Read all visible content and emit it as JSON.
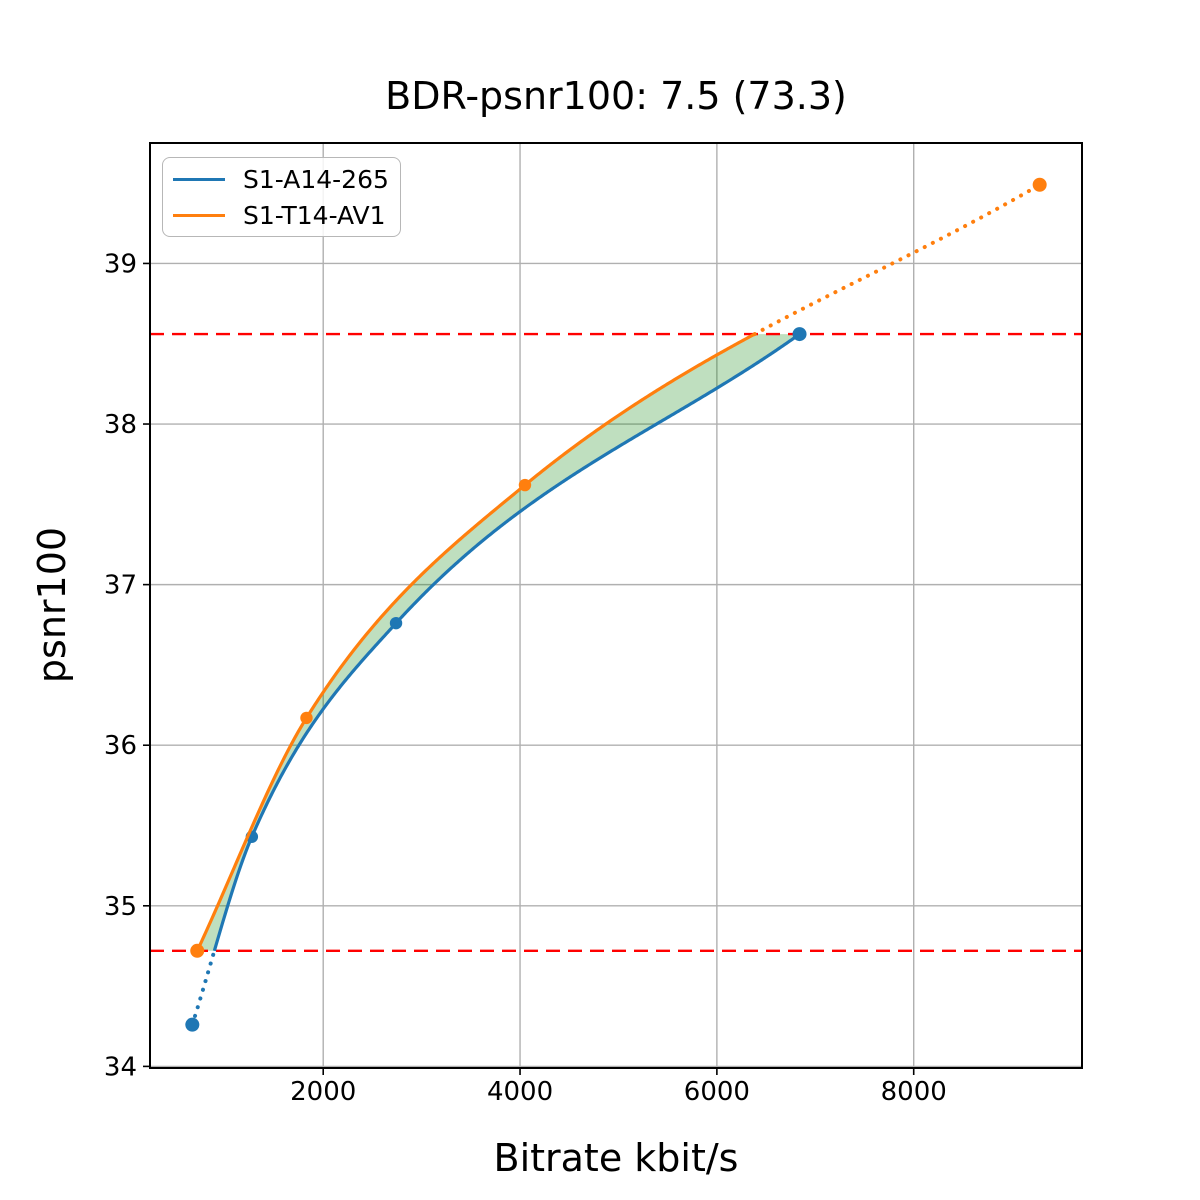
{
  "chart_data": {
    "type": "line",
    "title": "BDR-psnr100: 7.5 (73.3)",
    "xlabel": "Bitrate kbit/s",
    "ylabel": "psnr100",
    "xlim": [
      240,
      9710
    ],
    "ylim": [
      33.99,
      39.75
    ],
    "xticks": [
      2000,
      4000,
      6000,
      8000
    ],
    "yticks": [
      34,
      35,
      36,
      37,
      38,
      39
    ],
    "grid": true,
    "grid_color": "#b0b0b0",
    "legend_position": "upper left",
    "series": [
      {
        "name": "S1-A14-265",
        "color": "#1f77b4",
        "points": [
          [
            670,
            34.26
          ],
          [
            1275,
            35.43
          ],
          [
            2740,
            36.76
          ],
          [
            6840,
            38.56
          ]
        ],
        "line_style": "solid inside red-line band, dotted outside"
      },
      {
        "name": "S1-T14-AV1",
        "color": "#ff7f0e",
        "points": [
          [
            720,
            34.72
          ],
          [
            1830,
            36.17
          ],
          [
            4050,
            37.62
          ],
          [
            9280,
            39.49
          ]
        ],
        "line_style": "solid inside red-line band, dotted outside"
      }
    ],
    "red_dashed_lines_y": {
      "lower": 34.72,
      "upper": 38.56
    },
    "red_line_color": "#ff0000",
    "fill_between": {
      "description": "shaded area between the two curves clipped to the red-line psnr band",
      "color": "#008000",
      "opacity": 0.25,
      "psnr_range": [
        34.72,
        38.56
      ]
    }
  }
}
